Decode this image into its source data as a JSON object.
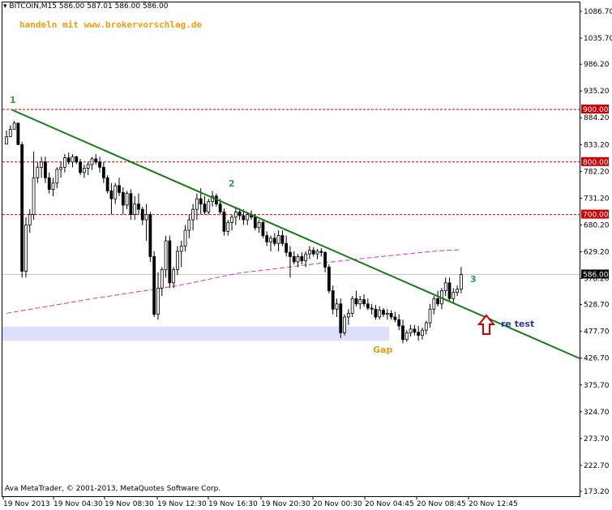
{
  "header": {
    "symbol_line": "BITCOIN,M15  586.00 587.01 586.00 586.00",
    "promo": "handeln mit www.brokervorschlag.de"
  },
  "footer": {
    "copyright": "Ava MetaTrader, © 2001-2013, MetaQuotes Software Corp."
  },
  "colors": {
    "candles": "#000000",
    "trendline": "#1a7a1a",
    "moving_average": "#cc33cc",
    "levels": "#cc0000",
    "level_label_bg": "#cc0000",
    "gap_zone": "#dde0fb",
    "annotation_green": "#2e9b4b",
    "gap_label": "#e69a12",
    "retest_label": "#2a3aa0",
    "arrow": "#cc0000"
  },
  "annotations": {
    "wave1": "1",
    "wave2": "2",
    "wave3": "3",
    "gap": "Gap",
    "retest": "re test"
  },
  "chart_data": {
    "type": "candlestick",
    "symbol": "BITCOIN",
    "timeframe": "M15",
    "ylim": [
      173.2,
      1090
    ],
    "y_ticks": [
      "1086.70",
      "1035.70",
      "986.20",
      "935.20",
      "884.20",
      "833.20",
      "782.20",
      "731.20",
      "680.20",
      "629.20",
      "578.20",
      "528.70",
      "477.70",
      "426.70",
      "375.70",
      "324.70",
      "273.70",
      "222.70",
      "173.20"
    ],
    "x_ticks": [
      "19 Nov 2013",
      "19 Nov 04:30",
      "19 Nov 08:30",
      "19 Nov 12:30",
      "19 Nov 16:30",
      "19 Nov 20:30",
      "20 Nov 00:30",
      "20 Nov 04:45",
      "20 Nov 08:45",
      "20 Nov 12:45"
    ],
    "current_price": {
      "value": 586.0,
      "label": "586.00"
    },
    "horizontal_levels": [
      {
        "value": 900.0,
        "label": "900.00"
      },
      {
        "value": 800.0,
        "label": "800.00"
      },
      {
        "value": 700.0,
        "label": "700.00"
      }
    ],
    "trendline": {
      "from": {
        "bar": 2,
        "price": 899
      },
      "to": {
        "bar": 178,
        "price": 477
      }
    },
    "moving_average": [
      {
        "bar": 0,
        "price": 512
      },
      {
        "bar": 30,
        "price": 540
      },
      {
        "bar": 60,
        "price": 565
      },
      {
        "bar": 80,
        "price": 588
      },
      {
        "bar": 110,
        "price": 608
      },
      {
        "bar": 130,
        "price": 620
      },
      {
        "bar": 150,
        "price": 631
      },
      {
        "bar": 158,
        "price": 633
      }
    ],
    "gap_zone": {
      "bar_start": 0,
      "bar_end": 133,
      "price_low": 460,
      "price_high": 487
    },
    "ohlc": [
      [
        834,
        860,
        840,
        848
      ],
      [
        848,
        870,
        850,
        862
      ],
      [
        862,
        878,
        862,
        874
      ],
      [
        874,
        870,
        833,
        833
      ],
      [
        833,
        838,
        580,
        592
      ],
      [
        592,
        695,
        580,
        680
      ],
      [
        680,
        710,
        665,
        700
      ],
      [
        700,
        820,
        690,
        770
      ],
      [
        770,
        800,
        760,
        790
      ],
      [
        790,
        810,
        770,
        800
      ],
      [
        800,
        810,
        760,
        770
      ],
      [
        770,
        780,
        740,
        748
      ],
      [
        748,
        770,
        735,
        760
      ],
      [
        760,
        790,
        750,
        786
      ],
      [
        786,
        800,
        770,
        790
      ],
      [
        790,
        815,
        780,
        808
      ],
      [
        808,
        818,
        795,
        800
      ],
      [
        800,
        815,
        790,
        810
      ],
      [
        810,
        812,
        796,
        800
      ],
      [
        800,
        806,
        775,
        780
      ],
      [
        780,
        795,
        770,
        788
      ],
      [
        788,
        800,
        775,
        795
      ],
      [
        795,
        810,
        785,
        806
      ],
      [
        806,
        815,
        795,
        800
      ],
      [
        800,
        810,
        780,
        790
      ],
      [
        790,
        800,
        760,
        770
      ],
      [
        770,
        775,
        740,
        745
      ],
      [
        745,
        760,
        700,
        730
      ],
      [
        730,
        760,
        720,
        755
      ],
      [
        755,
        770,
        735,
        742
      ],
      [
        742,
        752,
        700,
        718
      ],
      [
        718,
        745,
        710,
        740
      ],
      [
        740,
        748,
        690,
        700
      ],
      [
        700,
        735,
        690,
        720
      ],
      [
        720,
        740,
        700,
        710
      ],
      [
        710,
        715,
        680,
        690
      ],
      [
        690,
        720,
        650,
        700
      ],
      [
        700,
        705,
        610,
        620
      ],
      [
        620,
        630,
        505,
        510
      ],
      [
        510,
        590,
        500,
        560
      ],
      [
        560,
        600,
        545,
        595
      ],
      [
        595,
        660,
        580,
        650
      ],
      [
        650,
        660,
        560,
        570
      ],
      [
        570,
        600,
        560,
        595
      ],
      [
        595,
        640,
        585,
        630
      ],
      [
        630,
        650,
        600,
        640
      ],
      [
        640,
        680,
        630,
        670
      ],
      [
        670,
        700,
        655,
        690
      ],
      [
        690,
        720,
        670,
        710
      ],
      [
        710,
        740,
        690,
        730
      ],
      [
        730,
        750,
        700,
        720
      ],
      [
        720,
        735,
        700,
        705
      ],
      [
        705,
        730,
        700,
        725
      ],
      [
        725,
        745,
        715,
        735
      ],
      [
        735,
        740,
        715,
        720
      ],
      [
        720,
        730,
        700,
        705
      ],
      [
        705,
        712,
        660,
        668
      ],
      [
        668,
        690,
        660,
        685
      ],
      [
        685,
        700,
        670,
        695
      ],
      [
        695,
        715,
        680,
        705
      ],
      [
        705,
        712,
        690,
        698
      ],
      [
        698,
        710,
        680,
        690
      ],
      [
        690,
        705,
        680,
        700
      ],
      [
        700,
        708,
        690,
        695
      ],
      [
        695,
        700,
        670,
        675
      ],
      [
        675,
        690,
        665,
        685
      ],
      [
        685,
        690,
        655,
        660
      ],
      [
        660,
        668,
        640,
        648
      ],
      [
        648,
        660,
        630,
        655
      ],
      [
        655,
        665,
        640,
        645
      ],
      [
        645,
        670,
        630,
        660
      ],
      [
        660,
        670,
        640,
        645
      ],
      [
        645,
        660,
        620,
        628
      ],
      [
        628,
        640,
        580,
        620
      ],
      [
        620,
        630,
        605,
        610
      ],
      [
        610,
        625,
        600,
        620
      ],
      [
        620,
        628,
        605,
        612
      ],
      [
        612,
        630,
        600,
        625
      ],
      [
        625,
        640,
        615,
        632
      ],
      [
        632,
        638,
        620,
        625
      ],
      [
        625,
        635,
        615,
        630
      ],
      [
        630,
        636,
        620,
        628
      ],
      [
        628,
        630,
        590,
        600
      ],
      [
        600,
        605,
        550,
        555
      ],
      [
        555,
        565,
        510,
        520
      ],
      [
        520,
        540,
        505,
        530
      ],
      [
        530,
        540,
        465,
        475
      ],
      [
        475,
        510,
        470,
        505
      ],
      [
        505,
        520,
        490,
        512
      ],
      [
        512,
        545,
        505,
        540
      ],
      [
        540,
        555,
        525,
        530
      ],
      [
        530,
        545,
        520,
        538
      ],
      [
        538,
        548,
        525,
        530
      ],
      [
        530,
        540,
        518,
        522
      ],
      [
        522,
        530,
        510,
        520
      ],
      [
        520,
        528,
        500,
        505
      ],
      [
        505,
        525,
        500,
        518
      ],
      [
        518,
        522,
        505,
        510
      ],
      [
        510,
        520,
        500,
        512
      ],
      [
        512,
        518,
        500,
        505
      ],
      [
        505,
        515,
        495,
        500
      ],
      [
        500,
        510,
        480,
        488
      ],
      [
        488,
        500,
        455,
        462
      ],
      [
        462,
        480,
        458,
        475
      ],
      [
        475,
        490,
        468,
        482
      ],
      [
        482,
        490,
        470,
        476
      ],
      [
        476,
        488,
        460,
        470
      ],
      [
        470,
        485,
        462,
        480
      ],
      [
        480,
        498,
        472,
        494
      ],
      [
        494,
        530,
        485,
        520
      ],
      [
        520,
        545,
        510,
        540
      ],
      [
        540,
        555,
        525,
        530
      ],
      [
        530,
        560,
        520,
        555
      ],
      [
        555,
        580,
        545,
        570
      ],
      [
        570,
        580,
        535,
        540
      ],
      [
        540,
        560,
        530,
        552
      ],
      [
        552,
        565,
        545,
        558
      ],
      [
        558,
        600,
        550,
        586
      ]
    ]
  }
}
